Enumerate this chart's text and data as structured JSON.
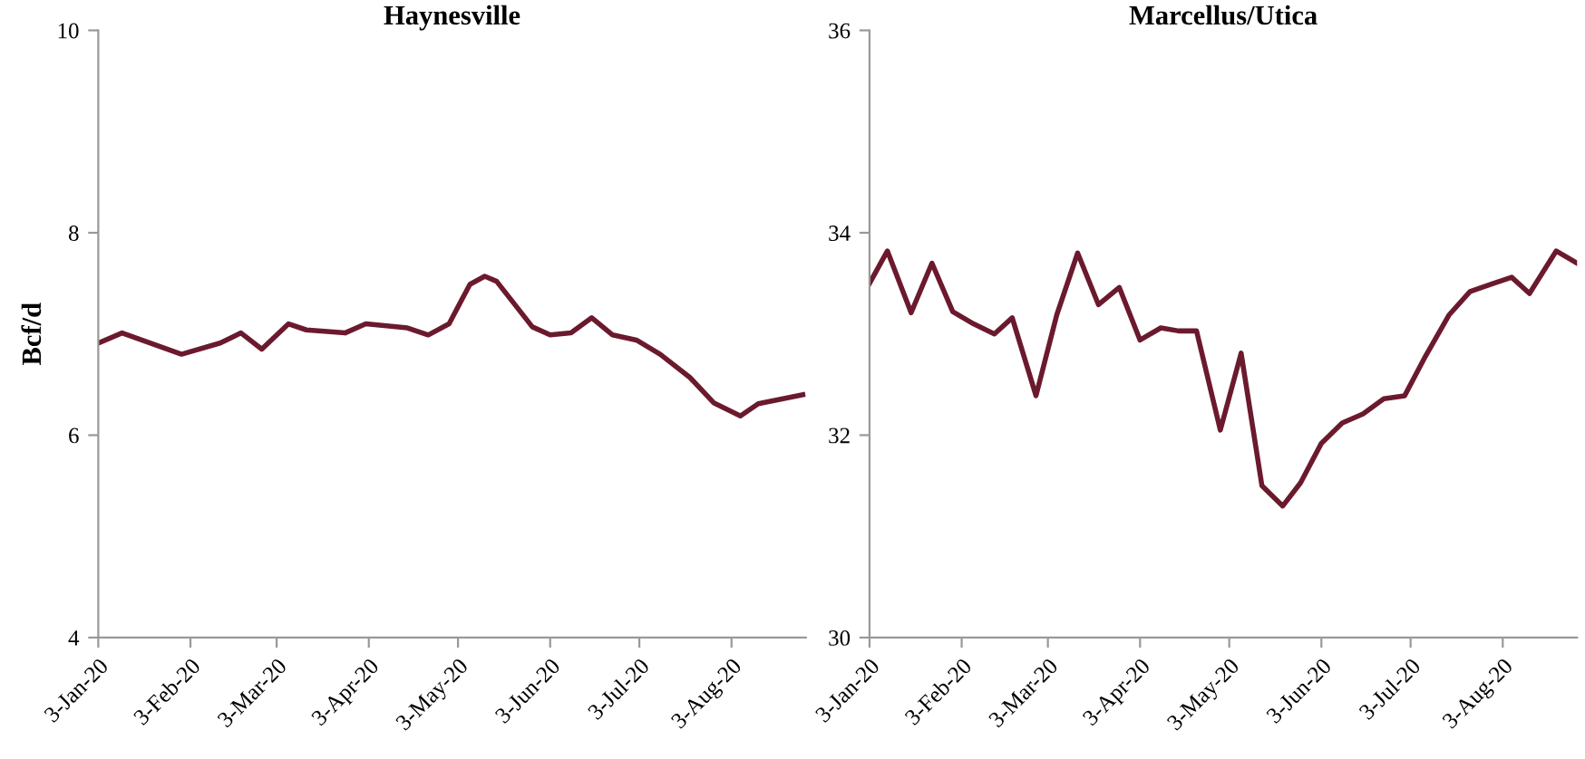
{
  "chart_data": [
    {
      "type": "line",
      "title": "Haynesville",
      "ylabel": "Bcf/d",
      "grid": false,
      "legend": false,
      "xlim": [
        "2020-01-03",
        "2020-08-28"
      ],
      "ylim": [
        4,
        10
      ],
      "yticks": [
        4,
        6,
        8,
        10
      ],
      "xticks": [
        {
          "value": "2020-01-03",
          "label": "3-Jan-20"
        },
        {
          "value": "2020-02-03",
          "label": "3-Feb-20"
        },
        {
          "value": "2020-03-03",
          "label": "3-Mar-20"
        },
        {
          "value": "2020-04-03",
          "label": "3-Apr-20"
        },
        {
          "value": "2020-05-03",
          "label": "3-May-20"
        },
        {
          "value": "2020-06-03",
          "label": "3-Jun-20"
        },
        {
          "value": "2020-07-03",
          "label": "3-Jul-20"
        },
        {
          "value": "2020-08-03",
          "label": "3-Aug-20"
        }
      ],
      "x": [
        "2020-01-03",
        "2020-01-11",
        "2020-01-31",
        "2020-02-13",
        "2020-02-20",
        "2020-02-27",
        "2020-03-07",
        "2020-03-13",
        "2020-03-26",
        "2020-04-02",
        "2020-04-16",
        "2020-04-23",
        "2020-04-30",
        "2020-05-07",
        "2020-05-12",
        "2020-05-16",
        "2020-05-28",
        "2020-06-03",
        "2020-06-10",
        "2020-06-17",
        "2020-06-24",
        "2020-07-02",
        "2020-07-10",
        "2020-07-20",
        "2020-07-28",
        "2020-08-06",
        "2020-08-12",
        "2020-08-27"
      ],
      "series": [
        {
          "color": "#6b1a2e",
          "values": [
            6.91,
            7.01,
            6.8,
            6.91,
            7.01,
            6.85,
            7.1,
            7.04,
            7.01,
            7.1,
            7.06,
            6.99,
            7.1,
            7.49,
            7.57,
            7.52,
            7.07,
            6.99,
            7.01,
            7.16,
            6.99,
            6.94,
            6.8,
            6.57,
            6.32,
            6.19,
            6.31,
            6.4
          ]
        }
      ]
    },
    {
      "type": "line",
      "title": "Marcellus/Utica",
      "grid": false,
      "legend": false,
      "xlim": [
        "2020-01-03",
        "2020-08-28"
      ],
      "ylim": [
        30,
        36
      ],
      "yticks": [
        30,
        32,
        34,
        36
      ],
      "xticks": [
        {
          "value": "2020-01-03",
          "label": "3-Jan-20"
        },
        {
          "value": "2020-02-03",
          "label": "3-Feb-20"
        },
        {
          "value": "2020-03-03",
          "label": "3-Mar-20"
        },
        {
          "value": "2020-04-03",
          "label": "3-Apr-20"
        },
        {
          "value": "2020-05-03",
          "label": "3-May-20"
        },
        {
          "value": "2020-06-03",
          "label": "3-Jun-20"
        },
        {
          "value": "2020-07-03",
          "label": "3-Jul-20"
        },
        {
          "value": "2020-08-03",
          "label": "3-Aug-20"
        }
      ],
      "x": [
        "2020-01-03",
        "2020-01-09",
        "2020-01-17",
        "2020-01-24",
        "2020-01-31",
        "2020-02-07",
        "2020-02-14",
        "2020-02-20",
        "2020-02-28",
        "2020-03-06",
        "2020-03-13",
        "2020-03-20",
        "2020-03-27",
        "2020-04-03",
        "2020-04-10",
        "2020-04-16",
        "2020-04-22",
        "2020-04-30",
        "2020-05-07",
        "2020-05-14",
        "2020-05-21",
        "2020-05-27",
        "2020-06-03",
        "2020-06-10",
        "2020-06-17",
        "2020-06-24",
        "2020-07-01",
        "2020-07-08",
        "2020-07-16",
        "2020-07-23",
        "2020-07-30",
        "2020-08-06",
        "2020-08-12",
        "2020-08-21",
        "2020-08-28"
      ],
      "series": [
        {
          "color": "#6b1a2e",
          "values": [
            33.5,
            33.82,
            33.21,
            33.7,
            33.22,
            33.1,
            33.0,
            33.16,
            32.39,
            33.19,
            33.8,
            33.29,
            33.46,
            32.94,
            33.06,
            33.03,
            33.03,
            32.05,
            32.81,
            31.5,
            31.3,
            31.53,
            31.92,
            32.12,
            32.21,
            32.36,
            32.39,
            32.78,
            33.19,
            33.42,
            33.49,
            33.56,
            33.4,
            33.82,
            33.7
          ]
        }
      ]
    }
  ]
}
